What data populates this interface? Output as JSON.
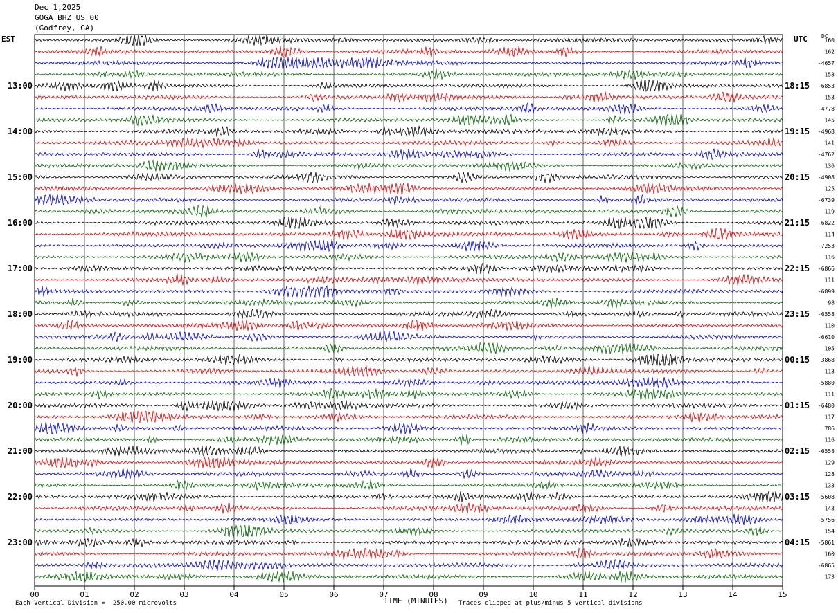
{
  "header": {
    "date": "Dec 1,2025",
    "station": "GOGA BHZ US 00",
    "location": "(Godfrey, GA)"
  },
  "axes": {
    "left_label": "EST",
    "right_label": "UTC",
    "dc_label": "DC",
    "xlabel": "TIME (MINUTES)"
  },
  "footer": {
    "scale": "Each Vertical Division =  250.00 microvolts",
    "clip": "Traces clipped at plus/minus 5 vertical divisions"
  },
  "chart_data": {
    "type": "line",
    "title": "",
    "xlabel": "TIME (MINUTES)",
    "xlim": [
      0,
      15
    ],
    "x_ticks": [
      "00",
      "01",
      "02",
      "03",
      "04",
      "05",
      "06",
      "07",
      "08",
      "09",
      "10",
      "11",
      "12",
      "13",
      "14",
      "15"
    ],
    "rows_per_hour": 4,
    "row_colors": [
      "#000000",
      "#e00000",
      "#0000d0",
      "#006400"
    ],
    "est_hour_labels": [
      "13:00",
      "14:00",
      "15:00",
      "16:00",
      "17:00",
      "18:00",
      "19:00",
      "20:00",
      "21:00",
      "22:00",
      "23:00"
    ],
    "utc_hour_labels": [
      "18:15",
      "19:15",
      "20:15",
      "21:15",
      "22:15",
      "23:15",
      "00:15",
      "01:15",
      "02:15",
      "03:15",
      "04:15"
    ],
    "dc_offsets": [
      "160",
      "162",
      "-4657",
      "153",
      "-6853",
      "153",
      "-4778",
      "145",
      "-4968",
      "141",
      "-4762",
      "136",
      "-4908",
      "125",
      "-6739",
      "119",
      "-6822",
      "114",
      "-7253",
      "116",
      "-6866",
      "111",
      "-6899",
      "98",
      "-6558",
      "110",
      "-6610",
      "105",
      "3868",
      "113",
      "-5880",
      "111",
      "-6480",
      "117",
      "786",
      "116",
      "-6558",
      "129",
      "128",
      "133",
      "-5608",
      "143",
      "-5756",
      "154",
      "-5861",
      "160",
      "-6865",
      "173"
    ]
  }
}
